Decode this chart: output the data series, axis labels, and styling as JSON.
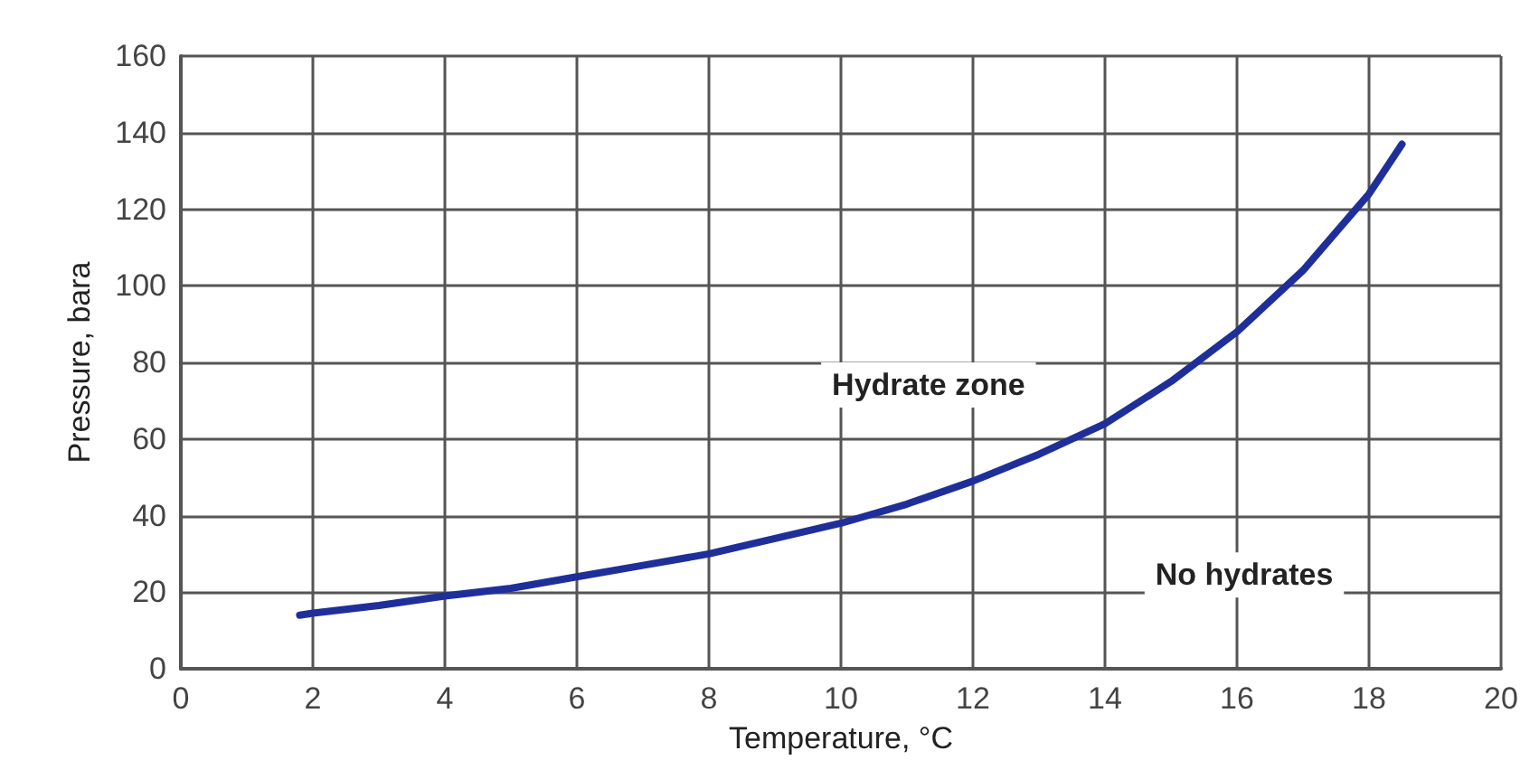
{
  "chart_data": {
    "type": "line",
    "xlabel": "Temperature, °C",
    "ylabel": "Pressure, bara",
    "x": [
      1.8,
      2,
      3,
      4,
      5,
      6,
      7,
      8,
      9,
      10,
      11,
      12,
      13,
      14,
      15,
      16,
      17,
      18,
      18.5
    ],
    "series": [
      {
        "color": "#1f2f9a",
        "values": [
          14,
          14.5,
          16.5,
          19,
          21,
          24,
          27,
          30,
          34,
          38,
          43,
          49,
          56,
          64,
          75,
          88,
          104,
          124,
          137
        ]
      }
    ],
    "xlim": [
      0,
      20
    ],
    "xticks": [
      0,
      2,
      4,
      6,
      8,
      10,
      12,
      14,
      16,
      18,
      20
    ],
    "ylim": [
      0,
      160
    ],
    "yticks": [
      0,
      20,
      40,
      60,
      80,
      100,
      120,
      140,
      160
    ],
    "grid": true,
    "marker": "none",
    "line_style": "solid",
    "annotations": [
      "Hydrate zone",
      "No hydrates"
    ]
  }
}
